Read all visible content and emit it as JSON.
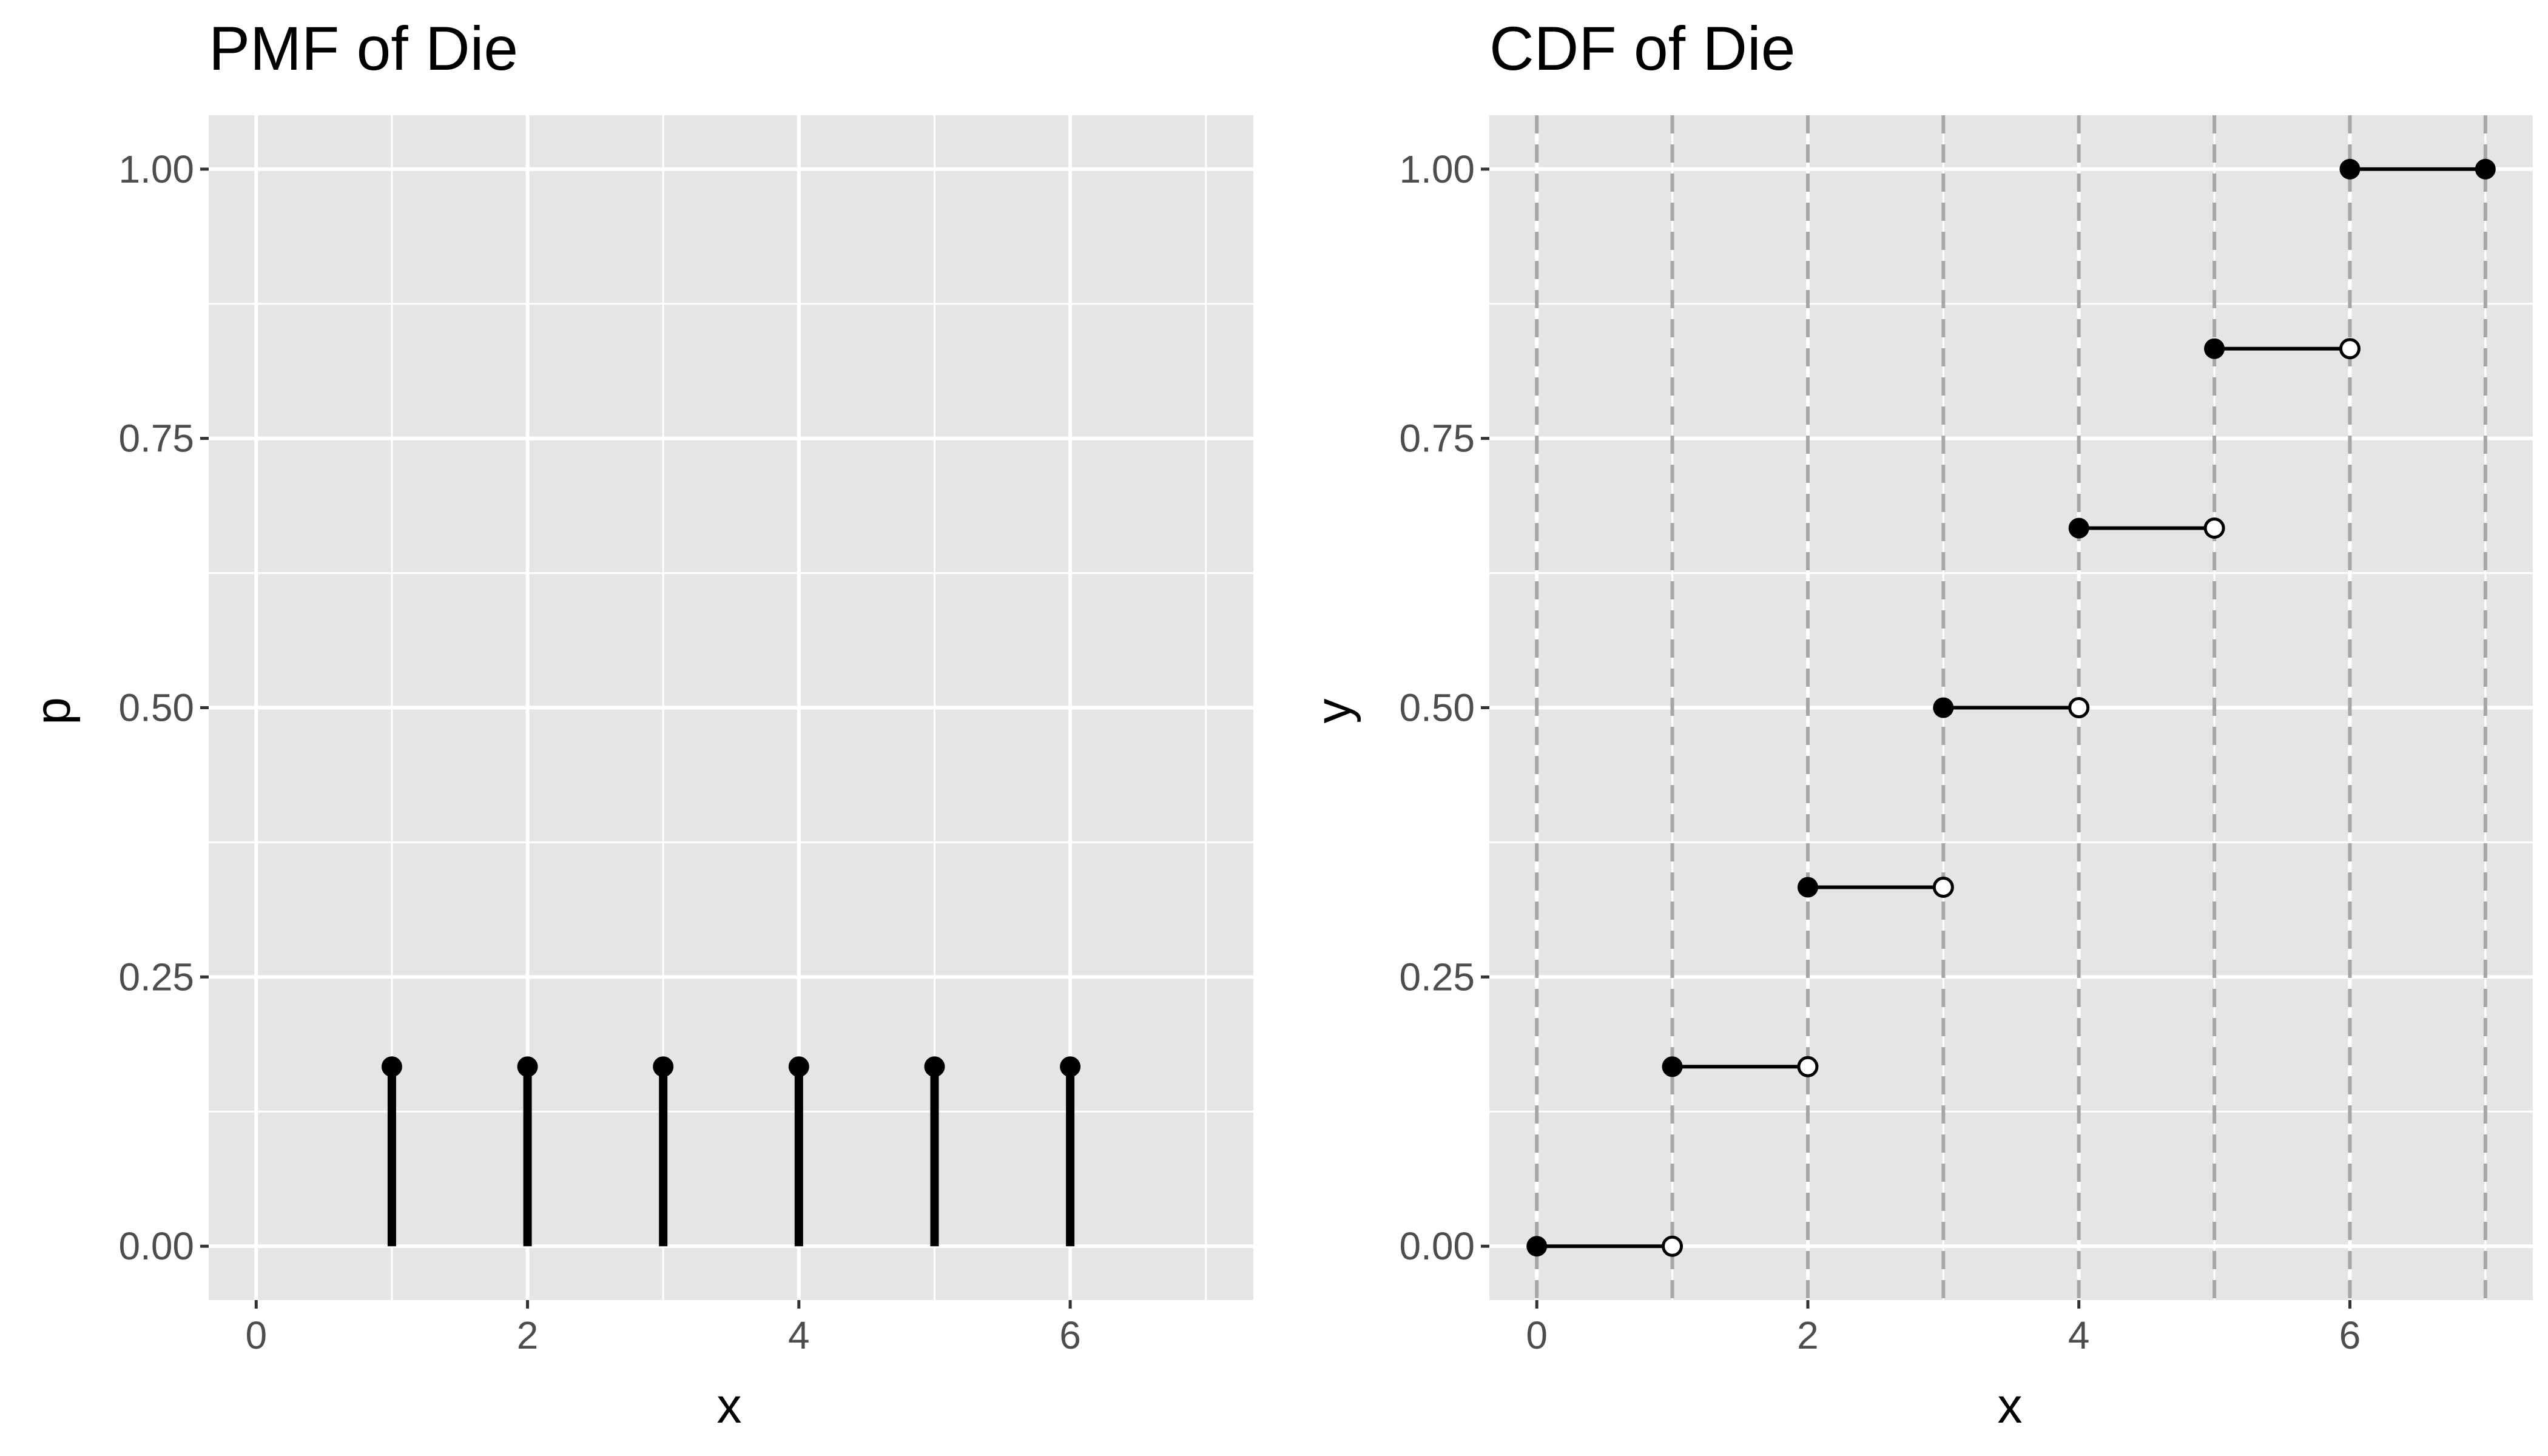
{
  "colors": {
    "panel": "#e5e5e5",
    "grid": "#ffffff",
    "ink": "#000000",
    "tick_text": "#4d4d4d",
    "vline": "#a6a6a6"
  },
  "chart_data": [
    {
      "type": "lollipop",
      "title": "PMF of Die",
      "xlabel": "x",
      "ylabel": "p",
      "xlim": [
        -0.35,
        7.35
      ],
      "ylim": [
        -0.05,
        1.05
      ],
      "x_ticks": [
        0,
        2,
        4,
        6
      ],
      "y_ticks": [
        0,
        0.25,
        0.5,
        0.75,
        1
      ],
      "x_tick_labels": [
        "0",
        "2",
        "4",
        "6"
      ],
      "y_tick_labels": [
        "0.00",
        "0.25",
        "0.50",
        "0.75",
        "1.00"
      ],
      "grid": true,
      "x": [
        1,
        2,
        3,
        4,
        5,
        6
      ],
      "y": [
        0.1667,
        0.1667,
        0.1667,
        0.1667,
        0.1667,
        0.1667
      ]
    },
    {
      "type": "step",
      "title": "CDF of Die",
      "xlabel": "x",
      "ylabel": "y",
      "xlim": [
        -0.35,
        7.35
      ],
      "ylim": [
        -0.05,
        1.05
      ],
      "x_ticks": [
        0,
        2,
        4,
        6
      ],
      "y_ticks": [
        0,
        0.25,
        0.5,
        0.75,
        1
      ],
      "x_tick_labels": [
        "0",
        "2",
        "4",
        "6"
      ],
      "y_tick_labels": [
        "0.00",
        "0.25",
        "0.50",
        "0.75",
        "1.00"
      ],
      "grid": true,
      "vlines_dashed": [
        0,
        1,
        2,
        3,
        4,
        5,
        6,
        7
      ],
      "segments": [
        {
          "x_start": 0,
          "x_end": 1,
          "y": 0,
          "end_open": true
        },
        {
          "x_start": 1,
          "x_end": 2,
          "y": 0.1667,
          "end_open": true
        },
        {
          "x_start": 2,
          "x_end": 3,
          "y": 0.3333,
          "end_open": true
        },
        {
          "x_start": 3,
          "x_end": 4,
          "y": 0.5,
          "end_open": true
        },
        {
          "x_start": 4,
          "x_end": 5,
          "y": 0.6667,
          "end_open": true
        },
        {
          "x_start": 5,
          "x_end": 6,
          "y": 0.8333,
          "end_open": true
        },
        {
          "x_start": 6,
          "x_end": 7,
          "y": 1,
          "end_open": false
        }
      ]
    }
  ]
}
